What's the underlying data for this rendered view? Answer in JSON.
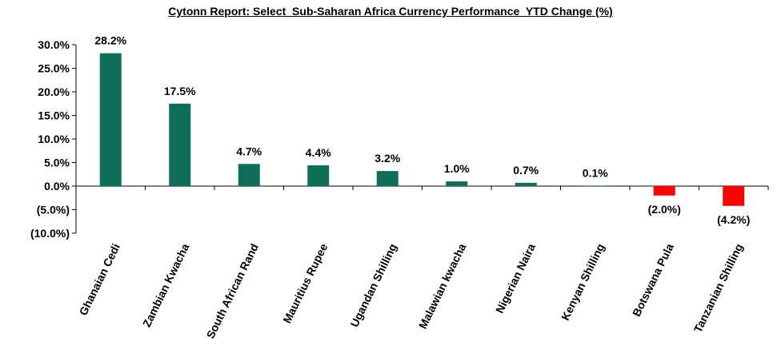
{
  "chart_data": {
    "type": "bar",
    "title": "Cytonn Report: Select  Sub-Saharan Africa Currency Performance  YTD Change (%)",
    "categories": [
      "Ghanaian Cedi",
      "Zambian Kwacha",
      "South African Rand",
      "Mauritius Rupee",
      "Ugandan Shilling",
      "Malawian kwacha",
      "Nigerian Naira",
      "Kenyan Shilling",
      "Botswana Pula",
      "Tanzanian Shilling"
    ],
    "values": [
      28.2,
      17.5,
      4.7,
      4.4,
      3.2,
      1.0,
      0.7,
      0.1,
      -2.0,
      -4.2
    ],
    "data_labels": [
      "28.2%",
      "17.5%",
      "4.7%",
      "4.4%",
      "3.2%",
      "1.0%",
      "0.7%",
      "0.1%",
      "(2.0%)",
      "(4.2%)"
    ],
    "ylim": [
      -10,
      30
    ],
    "yticks": [
      30,
      25,
      20,
      15,
      10,
      5,
      0,
      -5,
      -10
    ],
    "ytick_labels": [
      "30.0%",
      "25.0%",
      "20.0%",
      "15.0%",
      "10.0%",
      "5.0%",
      "0.0%",
      "(5.0%)",
      "(10.0%)"
    ],
    "grid": false,
    "legend": "none",
    "colors": {
      "positive": "#0f6e57",
      "negative": "#ff0000"
    }
  }
}
